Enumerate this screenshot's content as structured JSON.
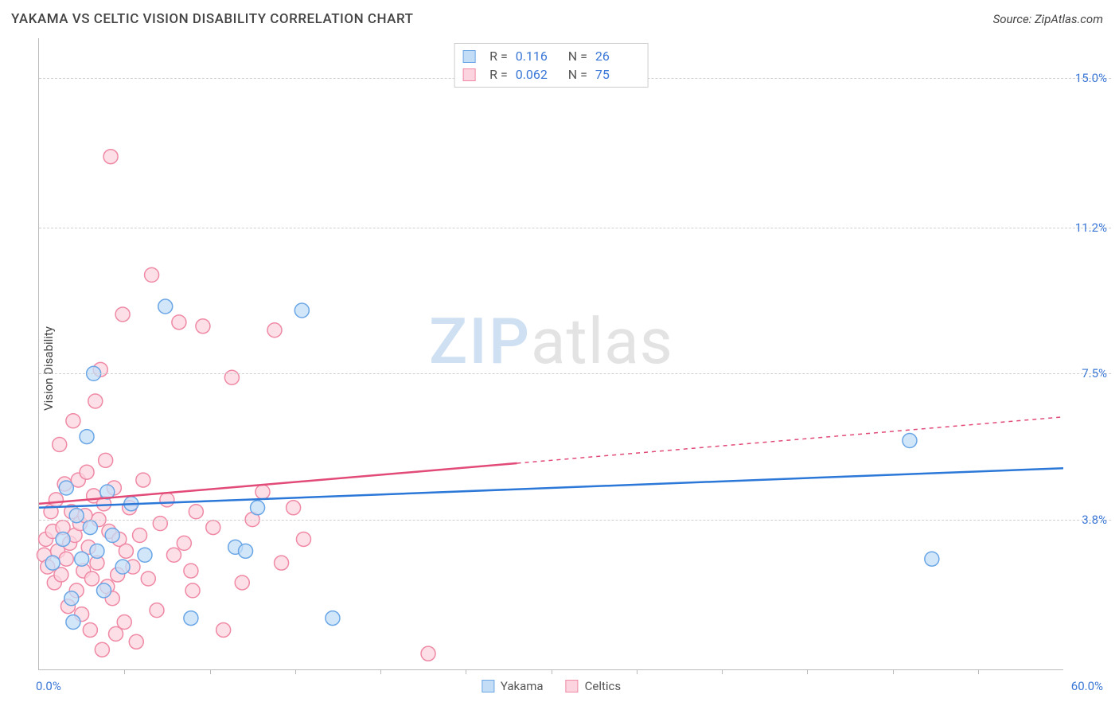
{
  "header": {
    "title": "YAKAMA VS CELTIC VISION DISABILITY CORRELATION CHART",
    "source": "Source: ZipAtlas.com"
  },
  "watermark": {
    "part1": "ZIP",
    "part2": "atlas"
  },
  "chart": {
    "type": "scatter",
    "ylabel": "Vision Disability",
    "x_min": 0.0,
    "x_max": 60.0,
    "y_min": 0.0,
    "y_max": 16.0,
    "x_min_label": "0.0%",
    "x_max_label": "60.0%",
    "y_gridlines": [
      {
        "v": 3.8,
        "label": "3.8%"
      },
      {
        "v": 7.5,
        "label": "7.5%"
      },
      {
        "v": 11.2,
        "label": "11.2%"
      },
      {
        "v": 15.0,
        "label": "15.0%"
      }
    ],
    "x_tick_step": 5.0,
    "background_color": "#ffffff",
    "grid_color": "#d6d6d6",
    "axis_color": "#bbbbbb",
    "point_radius": 9,
    "point_stroke_width": 1.5,
    "trend_line_width": 2.5,
    "series": {
      "yakama": {
        "label": "Yakama",
        "fill": "#c3ddf7",
        "stroke": "#6aa6e6",
        "trend_color": "#2b78d8",
        "r": "0.116",
        "n": "26",
        "trend_start_y": 4.1,
        "trend_end_y": 5.1,
        "trend_dash_after_x": 60.0,
        "points": [
          {
            "x": 0.8,
            "y": 2.7
          },
          {
            "x": 1.4,
            "y": 3.3
          },
          {
            "x": 1.6,
            "y": 4.6
          },
          {
            "x": 2.0,
            "y": 1.2
          },
          {
            "x": 2.2,
            "y": 3.9
          },
          {
            "x": 2.5,
            "y": 2.8
          },
          {
            "x": 2.8,
            "y": 5.9
          },
          {
            "x": 3.0,
            "y": 3.6
          },
          {
            "x": 3.2,
            "y": 7.5
          },
          {
            "x": 3.4,
            "y": 3.0
          },
          {
            "x": 3.8,
            "y": 2.0
          },
          {
            "x": 4.0,
            "y": 4.5
          },
          {
            "x": 4.3,
            "y": 3.4
          },
          {
            "x": 4.9,
            "y": 2.6
          },
          {
            "x": 5.4,
            "y": 4.2
          },
          {
            "x": 6.2,
            "y": 2.9
          },
          {
            "x": 7.4,
            "y": 9.2
          },
          {
            "x": 8.9,
            "y": 1.3
          },
          {
            "x": 11.5,
            "y": 3.1
          },
          {
            "x": 12.1,
            "y": 3.0
          },
          {
            "x": 12.8,
            "y": 4.1
          },
          {
            "x": 15.4,
            "y": 9.1
          },
          {
            "x": 17.2,
            "y": 1.3
          },
          {
            "x": 51.0,
            "y": 5.8
          },
          {
            "x": 52.3,
            "y": 2.8
          },
          {
            "x": 1.9,
            "y": 1.8
          }
        ]
      },
      "celtics": {
        "label": "Celtics",
        "fill": "#fcd4df",
        "stroke": "#ef89a5",
        "trend_color": "#e24a78",
        "r": "0.062",
        "n": "75",
        "trend_start_y": 4.2,
        "trend_end_y": 6.4,
        "trend_dash_after_x": 28.0,
        "points": [
          {
            "x": 0.3,
            "y": 2.9
          },
          {
            "x": 0.4,
            "y": 3.3
          },
          {
            "x": 0.5,
            "y": 2.6
          },
          {
            "x": 0.7,
            "y": 4.0
          },
          {
            "x": 0.8,
            "y": 3.5
          },
          {
            "x": 0.9,
            "y": 2.2
          },
          {
            "x": 1.0,
            "y": 4.3
          },
          {
            "x": 1.1,
            "y": 3.0
          },
          {
            "x": 1.2,
            "y": 5.7
          },
          {
            "x": 1.3,
            "y": 2.4
          },
          {
            "x": 1.4,
            "y": 3.6
          },
          {
            "x": 1.5,
            "y": 4.7
          },
          {
            "x": 1.6,
            "y": 2.8
          },
          {
            "x": 1.7,
            "y": 1.6
          },
          {
            "x": 1.8,
            "y": 3.2
          },
          {
            "x": 1.9,
            "y": 4.0
          },
          {
            "x": 2.0,
            "y": 6.3
          },
          {
            "x": 2.1,
            "y": 3.4
          },
          {
            "x": 2.2,
            "y": 2.0
          },
          {
            "x": 2.3,
            "y": 4.8
          },
          {
            "x": 2.4,
            "y": 3.7
          },
          {
            "x": 2.5,
            "y": 1.4
          },
          {
            "x": 2.6,
            "y": 2.5
          },
          {
            "x": 2.7,
            "y": 3.9
          },
          {
            "x": 2.8,
            "y": 5.0
          },
          {
            "x": 2.9,
            "y": 3.1
          },
          {
            "x": 3.0,
            "y": 1.0
          },
          {
            "x": 3.1,
            "y": 2.3
          },
          {
            "x": 3.2,
            "y": 4.4
          },
          {
            "x": 3.3,
            "y": 6.8
          },
          {
            "x": 3.4,
            "y": 2.7
          },
          {
            "x": 3.5,
            "y": 3.8
          },
          {
            "x": 3.6,
            "y": 7.6
          },
          {
            "x": 3.7,
            "y": 0.5
          },
          {
            "x": 3.8,
            "y": 4.2
          },
          {
            "x": 3.9,
            "y": 5.3
          },
          {
            "x": 4.0,
            "y": 2.1
          },
          {
            "x": 4.1,
            "y": 3.5
          },
          {
            "x": 4.2,
            "y": 13.0
          },
          {
            "x": 4.3,
            "y": 1.8
          },
          {
            "x": 4.4,
            "y": 4.6
          },
          {
            "x": 4.5,
            "y": 0.9
          },
          {
            "x": 4.6,
            "y": 2.4
          },
          {
            "x": 4.7,
            "y": 3.3
          },
          {
            "x": 4.9,
            "y": 9.0
          },
          {
            "x": 5.0,
            "y": 1.2
          },
          {
            "x": 5.1,
            "y": 3.0
          },
          {
            "x": 5.3,
            "y": 4.1
          },
          {
            "x": 5.5,
            "y": 2.6
          },
          {
            "x": 5.7,
            "y": 0.7
          },
          {
            "x": 5.9,
            "y": 3.4
          },
          {
            "x": 6.1,
            "y": 4.8
          },
          {
            "x": 6.4,
            "y": 2.3
          },
          {
            "x": 6.6,
            "y": 10.0
          },
          {
            "x": 6.9,
            "y": 1.5
          },
          {
            "x": 7.1,
            "y": 3.7
          },
          {
            "x": 7.5,
            "y": 4.3
          },
          {
            "x": 7.9,
            "y": 2.9
          },
          {
            "x": 8.2,
            "y": 8.8
          },
          {
            "x": 8.5,
            "y": 3.2
          },
          {
            "x": 8.9,
            "y": 2.5
          },
          {
            "x": 9.2,
            "y": 4.0
          },
          {
            "x": 9.6,
            "y": 8.7
          },
          {
            "x": 10.2,
            "y": 3.6
          },
          {
            "x": 10.8,
            "y": 1.0
          },
          {
            "x": 11.3,
            "y": 7.4
          },
          {
            "x": 11.9,
            "y": 2.2
          },
          {
            "x": 12.5,
            "y": 3.8
          },
          {
            "x": 13.1,
            "y": 4.5
          },
          {
            "x": 13.8,
            "y": 8.6
          },
          {
            "x": 14.2,
            "y": 2.7
          },
          {
            "x": 14.9,
            "y": 4.1
          },
          {
            "x": 15.5,
            "y": 3.3
          },
          {
            "x": 22.8,
            "y": 0.4
          },
          {
            "x": 9.0,
            "y": 2.0
          }
        ]
      }
    }
  }
}
